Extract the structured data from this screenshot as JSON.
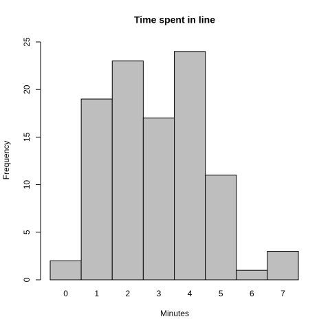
{
  "chart_data": {
    "type": "bar",
    "title": "Time spent in line",
    "x_label": "Minutes",
    "y_label": "Frequency",
    "categories": [
      "0",
      "1",
      "2",
      "3",
      "4",
      "5",
      "6",
      "7"
    ],
    "values": [
      2,
      19,
      23,
      17,
      24,
      11,
      1,
      3
    ],
    "color": "#bebebe",
    "ylim": [
      0,
      25
    ],
    "yticks": [
      0,
      5,
      10,
      15,
      20,
      25
    ]
  }
}
